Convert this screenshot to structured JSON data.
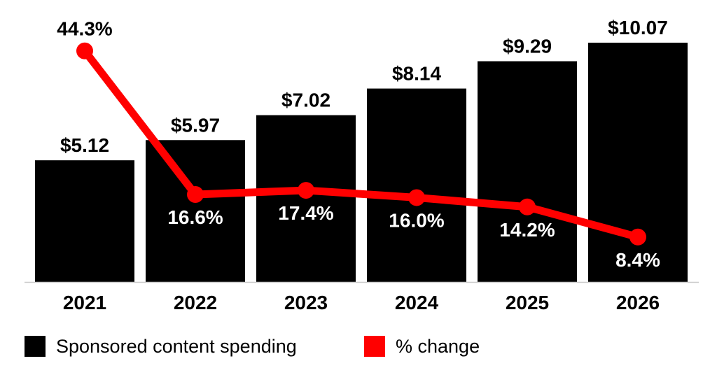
{
  "chart_data": {
    "type": "bar+line",
    "categories": [
      "2021",
      "2022",
      "2023",
      "2024",
      "2025",
      "2026"
    ],
    "series": [
      {
        "name": "Sponsored content spending",
        "type": "bar",
        "values": [
          5.12,
          5.97,
          7.02,
          8.14,
          9.29,
          10.07
        ],
        "labels": [
          "$5.12",
          "$5.97",
          "$7.02",
          "$8.14",
          "$9.29",
          "$10.07"
        ],
        "color": "#000000"
      },
      {
        "name": "% change",
        "type": "line",
        "values": [
          44.3,
          16.6,
          17.4,
          16.0,
          14.2,
          8.4
        ],
        "labels": [
          "44.3%",
          "16.6%",
          "17.4%",
          "16.0%",
          "14.2%",
          "8.4%"
        ],
        "color": "#ff0000"
      }
    ],
    "legend": "bottom-left",
    "grid": false
  }
}
